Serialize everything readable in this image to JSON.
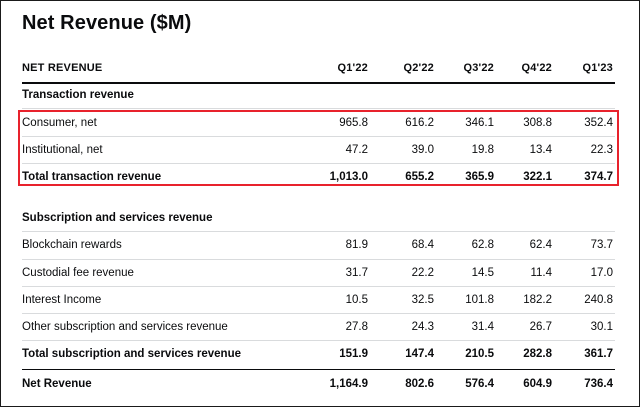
{
  "title": "Net Revenue ($M)",
  "header": {
    "label": "NET REVENUE",
    "columns": [
      "Q1'22",
      "Q2'22",
      "Q3'22",
      "Q4'22",
      "Q1'23"
    ]
  },
  "sections": {
    "transaction": {
      "title": "Transaction revenue",
      "rows": [
        {
          "label": "Consumer, net",
          "values": [
            "965.8",
            "616.2",
            "346.1",
            "308.8",
            "352.4"
          ]
        },
        {
          "label": "Institutional, net",
          "values": [
            "47.2",
            "39.0",
            "19.8",
            "13.4",
            "22.3"
          ]
        }
      ],
      "total": {
        "label": "Total transaction revenue",
        "values": [
          "1,013.0",
          "655.2",
          "365.9",
          "322.1",
          "374.7"
        ]
      }
    },
    "subscription": {
      "title": "Subscription and services revenue",
      "rows": [
        {
          "label": "Blockchain rewards",
          "values": [
            "81.9",
            "68.4",
            "62.8",
            "62.4",
            "73.7"
          ]
        },
        {
          "label": "Custodial fee revenue",
          "values": [
            "31.7",
            "22.2",
            "14.5",
            "11.4",
            "17.0"
          ]
        },
        {
          "label": "Interest Income",
          "values": [
            "10.5",
            "32.5",
            "101.8",
            "182.2",
            "240.8"
          ]
        },
        {
          "label": "Other subscription and services revenue",
          "values": [
            "27.8",
            "24.3",
            "31.4",
            "26.7",
            "30.1"
          ]
        }
      ],
      "total": {
        "label": "Total subscription and services revenue",
        "values": [
          "151.9",
          "147.4",
          "210.5",
          "282.8",
          "361.7"
        ]
      }
    }
  },
  "net_revenue": {
    "label": "Net Revenue",
    "values": [
      "1,164.9",
      "802.6",
      "576.4",
      "604.9",
      "736.4"
    ]
  },
  "highlight_color": "#e8222c"
}
